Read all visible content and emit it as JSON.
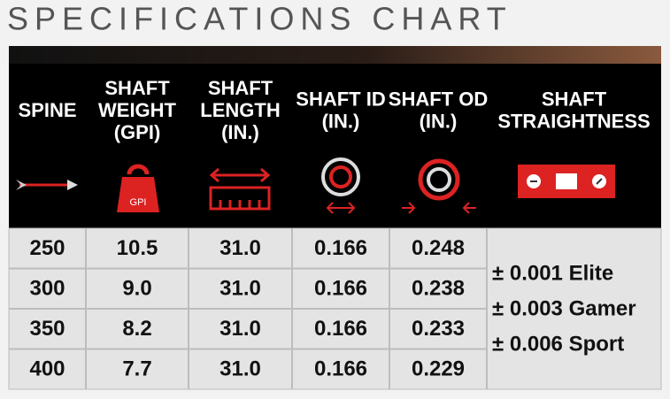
{
  "title": "SPECIFICATIONS CHART",
  "table": {
    "headers": [
      [
        "SPINE"
      ],
      [
        "SHAFT",
        "WEIGHT",
        "(GPI)"
      ],
      [
        "SHAFT",
        "LENGTH",
        "(IN.)"
      ],
      [
        "SHAFT ID",
        "(IN.)"
      ],
      [
        "SHAFT OD",
        "(IN.)"
      ],
      [
        "SHAFT",
        "STRAIGHTNESS"
      ]
    ],
    "rows": [
      [
        "250",
        "10.5",
        "31.0",
        "0.166",
        "0.248"
      ],
      [
        "300",
        "9.0",
        "31.0",
        "0.166",
        "0.238"
      ],
      [
        "350",
        "8.2",
        "31.0",
        "0.166",
        "0.233"
      ],
      [
        "400",
        "7.7",
        "31.0",
        "0.166",
        "0.229"
      ]
    ],
    "straightness": [
      "± 0.001 Elite",
      "± 0.003 Gamer",
      "± 0.006 Sport"
    ]
  },
  "icons": {
    "weight_label": "GPI"
  }
}
